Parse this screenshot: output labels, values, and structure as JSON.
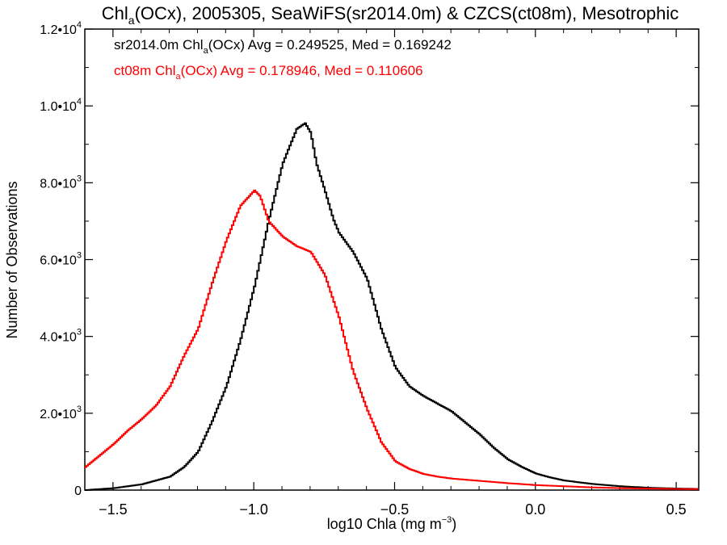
{
  "chart_data": {
    "type": "line",
    "title": {
      "prefix": "Chl",
      "sub": "a",
      "rest": "(OCx), 2005305, SeaWiFS(sr2014.0m) & CZCS(ct08m), Mesotrophic"
    },
    "xlabel": {
      "main": "log10 Chla (mg m",
      "sup": "−3",
      "close": ")"
    },
    "ylabel": "Number of Observations",
    "xlim": [
      -1.6,
      0.58
    ],
    "ylim": [
      0,
      12000
    ],
    "x_ticks": [
      {
        "value": -1.5,
        "label": "−1.5"
      },
      {
        "value": -1.0,
        "label": "−1.0"
      },
      {
        "value": -0.5,
        "label": "−0.5"
      },
      {
        "value": 0.0,
        "label": "0.0"
      },
      {
        "value": 0.5,
        "label": "0.5"
      }
    ],
    "y_ticks": [
      {
        "value": 0,
        "base": "0",
        "exp": ""
      },
      {
        "value": 2000,
        "base": "2.0•10",
        "exp": "3"
      },
      {
        "value": 4000,
        "base": "4.0•10",
        "exp": "3"
      },
      {
        "value": 6000,
        "base": "6.0•10",
        "exp": "3"
      },
      {
        "value": 8000,
        "base": "8.0•10",
        "exp": "3"
      },
      {
        "value": 10000,
        "base": "1.0•10",
        "exp": "4"
      },
      {
        "value": 12000,
        "base": "1.2•10",
        "exp": "4"
      }
    ],
    "grid": false,
    "legend": "top-left",
    "annotations": [
      {
        "color": "#000000",
        "prefix": "sr2014.0m Chl",
        "sub": "a",
        "rest": "(OCx) Avg = 0.249525, Med = 0.169242"
      },
      {
        "color": "#ff0000",
        "prefix": "ct08m Chl",
        "sub": "a",
        "rest": "(OCx) Avg = 0.178946, Med = 0.110606"
      }
    ],
    "series": [
      {
        "color": "#000000",
        "style": "step",
        "x": [
          -1.6,
          -1.5,
          -1.4,
          -1.3,
          -1.25,
          -1.2,
          -1.15,
          -1.1,
          -1.05,
          -1.0,
          -0.95,
          -0.9,
          -0.85,
          -0.82,
          -0.8,
          -0.78,
          -0.75,
          -0.72,
          -0.7,
          -0.65,
          -0.6,
          -0.55,
          -0.5,
          -0.45,
          -0.4,
          -0.35,
          -0.3,
          -0.25,
          -0.2,
          -0.15,
          -0.1,
          -0.05,
          0.0,
          0.05,
          0.1,
          0.2,
          0.3,
          0.4,
          0.5,
          0.58
        ],
        "y": [
          0,
          50,
          150,
          350,
          600,
          1000,
          1800,
          2700,
          3900,
          5300,
          7000,
          8500,
          9400,
          9550,
          9300,
          8500,
          7800,
          7050,
          6700,
          6200,
          5500,
          4200,
          3200,
          2700,
          2450,
          2250,
          2050,
          1750,
          1450,
          1100,
          800,
          600,
          430,
          330,
          250,
          160,
          100,
          60,
          40,
          30
        ]
      },
      {
        "color": "#ff0000",
        "style": "step",
        "x": [
          -1.6,
          -1.55,
          -1.5,
          -1.45,
          -1.4,
          -1.35,
          -1.3,
          -1.25,
          -1.2,
          -1.15,
          -1.1,
          -1.05,
          -1.0,
          -0.98,
          -0.95,
          -0.9,
          -0.85,
          -0.8,
          -0.75,
          -0.7,
          -0.65,
          -0.6,
          -0.55,
          -0.5,
          -0.45,
          -0.4,
          -0.35,
          -0.3,
          -0.25,
          -0.2,
          -0.1,
          0.0,
          0.1,
          0.2,
          0.3,
          0.4,
          0.5,
          0.58
        ],
        "y": [
          600,
          900,
          1200,
          1550,
          1850,
          2200,
          2700,
          3500,
          4200,
          5400,
          6500,
          7400,
          7800,
          7650,
          7000,
          6600,
          6350,
          6200,
          5600,
          4500,
          3100,
          2100,
          1250,
          750,
          550,
          420,
          350,
          300,
          270,
          240,
          180,
          130,
          100,
          70,
          50,
          40,
          30,
          25
        ]
      }
    ]
  }
}
